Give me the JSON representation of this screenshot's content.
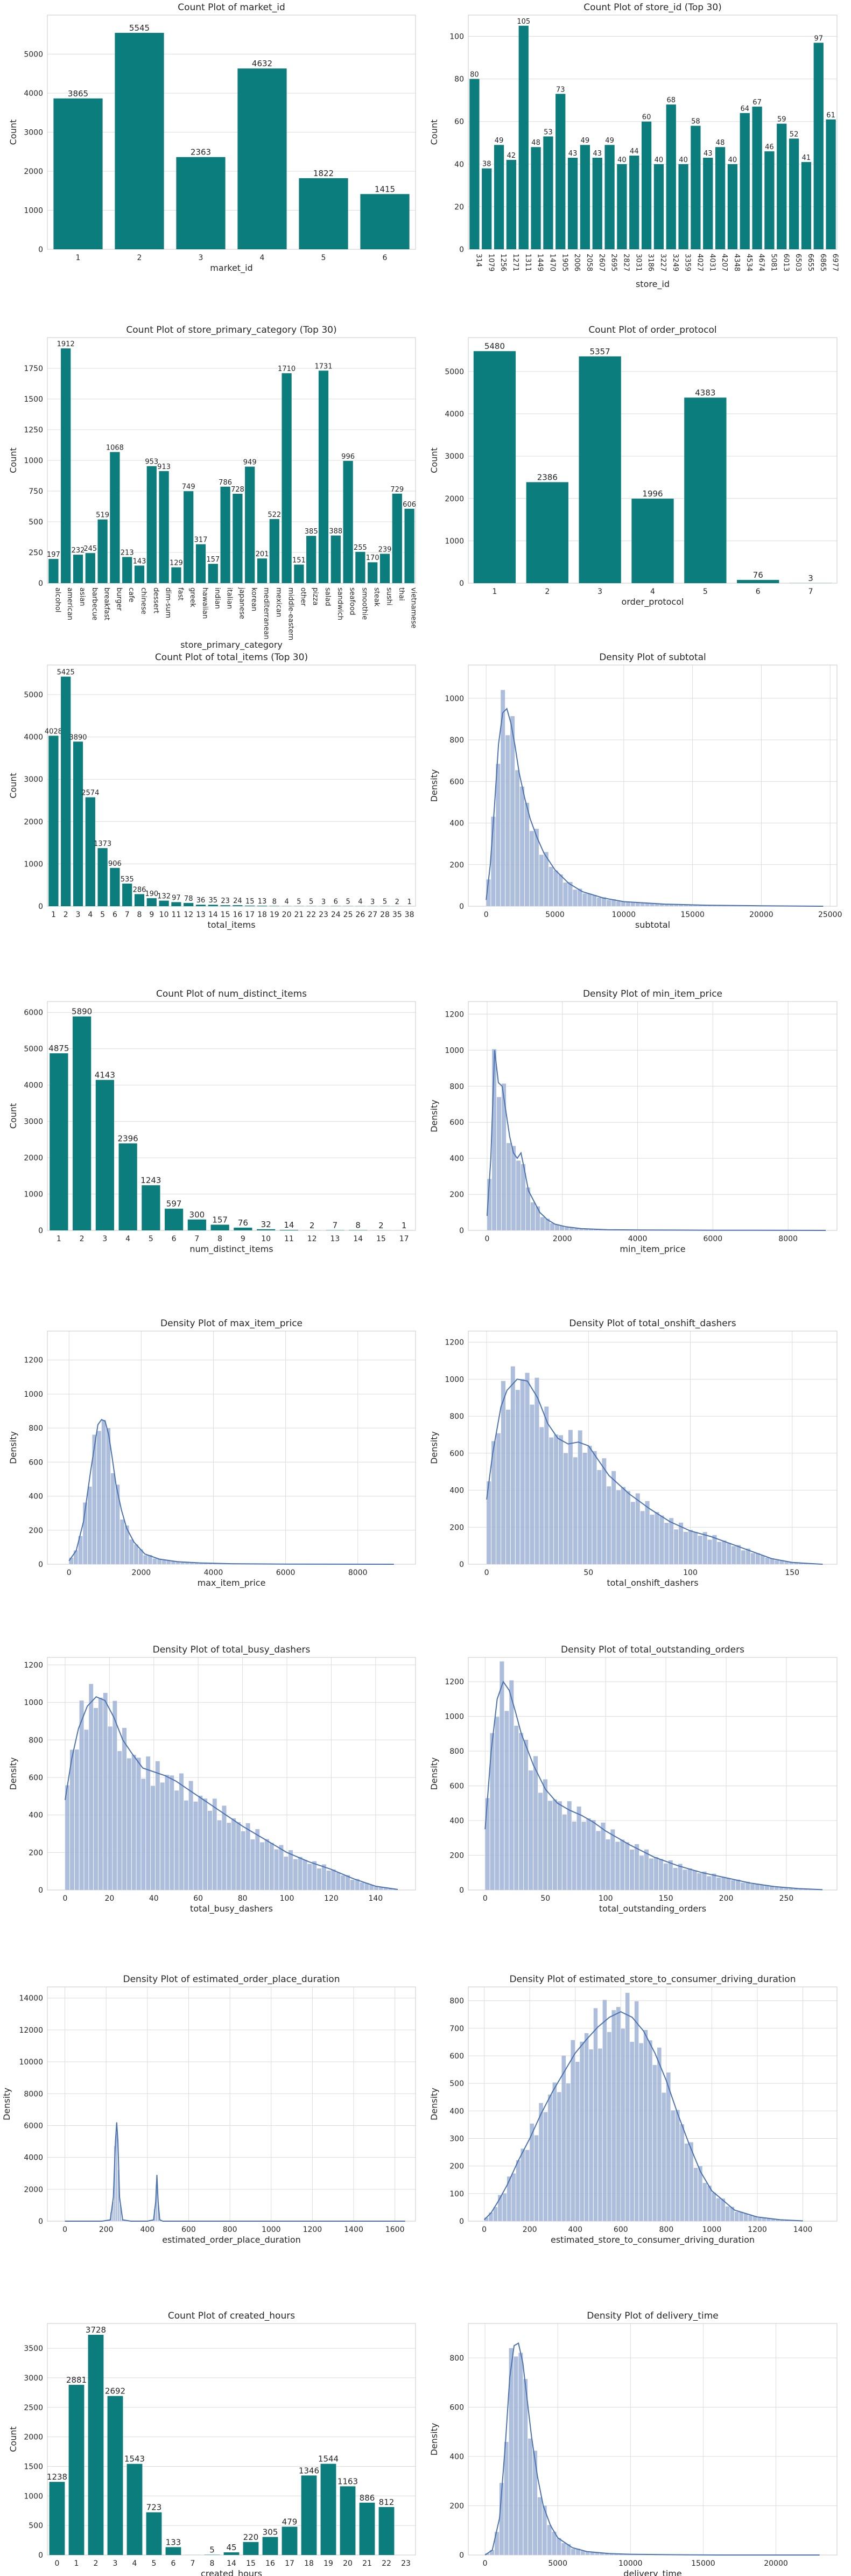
{
  "colors": {
    "bar": "#0b7d7d",
    "hist": "#9eb3d6",
    "kde": "#4c72b0",
    "grid": "#dcdcdc",
    "axis": "#c8c8c8"
  },
  "chart_data": [
    {
      "type": "bar",
      "title": "Count Plot of market_id",
      "xlabel": "market_id",
      "ylabel": "Count",
      "categories": [
        "1",
        "2",
        "3",
        "4",
        "5",
        "6"
      ],
      "values": [
        3865,
        5545,
        2363,
        4632,
        1822,
        1415
      ],
      "ylim": [
        0,
        6000
      ],
      "yticks": [
        0,
        1000,
        2000,
        3000,
        4000,
        5000
      ],
      "grid": true
    },
    {
      "type": "bar",
      "title": "Count Plot of store_id (Top 30)",
      "xlabel": "store_id",
      "ylabel": "Count",
      "categories": [
        "314",
        "1079",
        "1256",
        "1271",
        "1311",
        "1449",
        "1470",
        "1905",
        "2006",
        "2058",
        "2607",
        "2695",
        "2827",
        "3031",
        "3186",
        "3227",
        "3249",
        "3359",
        "4027",
        "4031",
        "4207",
        "4348",
        "4534",
        "4674",
        "5081",
        "6013",
        "6503",
        "6655",
        "6865",
        "6977"
      ],
      "values": [
        80,
        38,
        49,
        42,
        105,
        48,
        53,
        73,
        43,
        49,
        43,
        49,
        40,
        44,
        60,
        40,
        68,
        40,
        58,
        43,
        48,
        40,
        64,
        67,
        46,
        59,
        52,
        41,
        97,
        61
      ],
      "ylim": [
        0,
        110
      ],
      "yticks": [
        0,
        20,
        40,
        60,
        80,
        100
      ],
      "grid": true,
      "xtick_rotation": 90
    },
    {
      "type": "bar",
      "title": "Count Plot of store_primary_category (Top 30)",
      "xlabel": "store_primary_category",
      "ylabel": "Count",
      "categories": [
        "alcohol",
        "american",
        "asian",
        "barbecue",
        "breakfast",
        "burger",
        "cafe",
        "chinese",
        "dessert",
        "dim-sum",
        "fast",
        "greek",
        "hawaiian",
        "indian",
        "italian",
        "japanese",
        "korean",
        "mediterranean",
        "mexican",
        "middle-eastern",
        "other",
        "pizza",
        "salad",
        "sandwich",
        "seafood",
        "smoothie",
        "steak",
        "sushi",
        "thai",
        "vietnamese"
      ],
      "values": [
        197,
        1912,
        232,
        245,
        519,
        1068,
        213,
        143,
        953,
        913,
        129,
        749,
        317,
        157,
        786,
        728,
        949,
        201,
        522,
        1710,
        151,
        385,
        1731,
        388,
        996,
        255,
        170,
        239,
        729,
        606
      ],
      "ylim": [
        0,
        2000
      ],
      "yticks": [
        0,
        250,
        500,
        750,
        1000,
        1250,
        1500,
        1750
      ],
      "grid": true,
      "xtick_rotation": 90
    },
    {
      "type": "bar",
      "title": "Count Plot of order_protocol",
      "xlabel": "order_protocol",
      "ylabel": "Count",
      "categories": [
        "1",
        "2",
        "3",
        "4",
        "5",
        "6",
        "7"
      ],
      "values": [
        5480,
        2386,
        5357,
        1996,
        4383,
        76,
        3
      ],
      "ylim": [
        0,
        5800
      ],
      "yticks": [
        0,
        1000,
        2000,
        3000,
        4000,
        5000
      ],
      "grid": true
    },
    {
      "type": "bar",
      "title": "Count Plot of total_items (Top 30)",
      "xlabel": "total_items",
      "ylabel": "Count",
      "categories": [
        "1",
        "2",
        "3",
        "4",
        "5",
        "6",
        "7",
        "8",
        "9",
        "10",
        "11",
        "12",
        "13",
        "14",
        "15",
        "16",
        "17",
        "18",
        "19",
        "20",
        "21",
        "22",
        "23",
        "24",
        "25",
        "26",
        "27",
        "28",
        "35",
        "38"
      ],
      "values": [
        4028,
        5425,
        3890,
        2574,
        1373,
        906,
        535,
        286,
        190,
        132,
        97,
        78,
        36,
        35,
        23,
        24,
        15,
        13,
        8,
        4,
        5,
        5,
        3,
        6,
        5,
        4,
        3,
        5,
        2,
        1
      ],
      "ylim": [
        0,
        5700
      ],
      "yticks": [
        0,
        1000,
        2000,
        3000,
        4000,
        5000
      ],
      "grid": true
    },
    {
      "type": "area",
      "title": "Density Plot of subtotal",
      "xlabel": "subtotal",
      "ylabel": "Density",
      "xlim": [
        -1300,
        25500
      ],
      "ylim": [
        0,
        1160
      ],
      "xticks": [
        0,
        5000,
        10000,
        15000,
        20000,
        25000
      ],
      "yticks": [
        0,
        200,
        400,
        600,
        800,
        1000
      ],
      "kde": {
        "x": [
          0,
          300,
          600,
          900,
          1200,
          1500,
          1800,
          2100,
          2400,
          2800,
          3200,
          3700,
          4200,
          5000,
          6000,
          7000,
          8500,
          10000,
          13000,
          16000,
          20000,
          24500
        ],
        "y": [
          30,
          200,
          480,
          780,
          930,
          950,
          880,
          770,
          640,
          520,
          420,
          330,
          255,
          175,
          110,
          70,
          40,
          22,
          10,
          5,
          2,
          0
        ]
      },
      "grid": true
    },
    {
      "type": "bar",
      "title": "Count Plot of num_distinct_items",
      "xlabel": "num_distinct_items",
      "ylabel": "Count",
      "categories": [
        "1",
        "2",
        "3",
        "4",
        "5",
        "6",
        "7",
        "8",
        "9",
        "10",
        "11",
        "12",
        "13",
        "14",
        "15",
        "17"
      ],
      "values": [
        4875,
        5890,
        4143,
        2396,
        1243,
        597,
        300,
        157,
        76,
        32,
        14,
        2,
        7,
        8,
        2,
        1
      ],
      "ylim": [
        0,
        6300
      ],
      "yticks": [
        0,
        1000,
        2000,
        3000,
        4000,
        5000,
        6000
      ],
      "grid": true
    },
    {
      "type": "area",
      "title": "Density Plot of min_item_price",
      "xlabel": "min_item_price",
      "ylabel": "Density",
      "xlim": [
        -500,
        9300
      ],
      "ylim": [
        0,
        1270
      ],
      "xticks": [
        0,
        2000,
        4000,
        6000,
        8000
      ],
      "yticks": [
        0,
        200,
        400,
        600,
        800,
        1000,
        1200
      ],
      "kde": {
        "x": [
          0,
          100,
          200,
          300,
          400,
          500,
          600,
          700,
          800,
          900,
          1000,
          1100,
          1250,
          1400,
          1600,
          1800,
          2100,
          2500,
          3200,
          4000,
          6000,
          9000
        ],
        "y": [
          80,
          400,
          1000,
          820,
          800,
          660,
          520,
          430,
          400,
          430,
          330,
          220,
          160,
          100,
          60,
          35,
          20,
          10,
          4,
          2,
          1,
          0
        ]
      },
      "grid": true
    },
    {
      "type": "area",
      "title": "Density Plot of max_item_price",
      "xlabel": "max_item_price",
      "ylabel": "Density",
      "xlim": [
        -600,
        9600
      ],
      "ylim": [
        0,
        1370
      ],
      "xticks": [
        0,
        2000,
        4000,
        6000,
        8000
      ],
      "yticks": [
        0,
        200,
        400,
        600,
        800,
        1000,
        1200
      ],
      "kde": {
        "x": [
          0,
          200,
          400,
          600,
          800,
          900,
          1000,
          1100,
          1200,
          1300,
          1450,
          1600,
          1800,
          2100,
          2500,
          3000,
          3600,
          4500,
          6000,
          9000
        ],
        "y": [
          20,
          80,
          250,
          550,
          820,
          850,
          840,
          760,
          620,
          470,
          320,
          210,
          130,
          60,
          30,
          15,
          8,
          3,
          1,
          0
        ]
      },
      "grid": true
    },
    {
      "type": "area",
      "title": "Density Plot of total_onshift_dashers",
      "xlabel": "total_onshift_dashers",
      "ylabel": "Density",
      "xlim": [
        -9,
        172
      ],
      "ylim": [
        0,
        1260
      ],
      "xticks": [
        0,
        50,
        100,
        150
      ],
      "yticks": [
        0,
        200,
        400,
        600,
        800,
        1000,
        1200
      ],
      "kde": {
        "x": [
          0,
          3,
          7,
          10,
          15,
          20,
          25,
          30,
          35,
          40,
          45,
          50,
          55,
          60,
          65,
          70,
          80,
          90,
          100,
          110,
          120,
          130,
          140,
          150,
          160,
          165
        ],
        "y": [
          350,
          600,
          850,
          940,
          1000,
          990,
          900,
          760,
          680,
          650,
          660,
          640,
          560,
          480,
          430,
          380,
          300,
          230,
          180,
          150,
          110,
          70,
          30,
          10,
          3,
          0
        ]
      },
      "grid": true
    },
    {
      "type": "area",
      "title": "Density Plot of total_busy_dashers",
      "xlabel": "total_busy_dashers",
      "ylabel": "Density",
      "xlim": [
        -8,
        158
      ],
      "ylim": [
        0,
        1240
      ],
      "xticks": [
        0,
        20,
        40,
        60,
        80,
        100,
        120,
        140
      ],
      "yticks": [
        0,
        200,
        400,
        600,
        800,
        1000,
        1200
      ],
      "kde": {
        "x": [
          0,
          3,
          6,
          10,
          14,
          18,
          22,
          26,
          30,
          35,
          40,
          45,
          50,
          55,
          60,
          70,
          80,
          90,
          100,
          110,
          120,
          130,
          140,
          150
        ],
        "y": [
          480,
          700,
          860,
          980,
          1030,
          1010,
          920,
          800,
          730,
          650,
          630,
          610,
          580,
          540,
          500,
          420,
          340,
          270,
          200,
          150,
          110,
          60,
          20,
          3
        ]
      },
      "grid": true
    },
    {
      "type": "area",
      "title": "Density Plot of total_outstanding_orders",
      "xlabel": "total_outstanding_orders",
      "ylabel": "Density",
      "xlim": [
        -14,
        292
      ],
      "ylim": [
        0,
        1340
      ],
      "xticks": [
        0,
        50,
        100,
        150,
        200,
        250
      ],
      "yticks": [
        0,
        200,
        400,
        600,
        800,
        1000,
        1200
      ],
      "kde": {
        "x": [
          0,
          5,
          10,
          15,
          20,
          25,
          30,
          40,
          50,
          60,
          70,
          80,
          90,
          100,
          110,
          120,
          140,
          160,
          180,
          200,
          220,
          240,
          260,
          280
        ],
        "y": [
          350,
          800,
          1100,
          1200,
          1150,
          1030,
          900,
          720,
          580,
          500,
          460,
          430,
          390,
          340,
          300,
          260,
          190,
          140,
          100,
          70,
          40,
          20,
          8,
          2
        ]
      },
      "grid": true
    },
    {
      "type": "area",
      "title": "Density Plot of estimated_order_place_duration",
      "xlabel": "estimated_order_place_duration",
      "ylabel": "Density",
      "xlim": [
        -85,
        1700
      ],
      "ylim": [
        0,
        14700
      ],
      "xticks": [
        0,
        200,
        400,
        600,
        800,
        1000,
        1200,
        1400,
        1600
      ],
      "yticks": [
        0,
        2000,
        4000,
        6000,
        8000,
        10000,
        12000,
        14000
      ],
      "kde": {
        "x": [
          0,
          180,
          220,
          235,
          245,
          251,
          257,
          265,
          280,
          320,
          400,
          430,
          440,
          446,
          452,
          460,
          475,
          520,
          800,
          1650
        ],
        "y": [
          0,
          0,
          80,
          1500,
          5000,
          6200,
          5000,
          1500,
          80,
          0,
          0,
          80,
          1200,
          2900,
          1200,
          80,
          0,
          0,
          0,
          0
        ]
      },
      "grid": true
    },
    {
      "type": "area",
      "title": "Density Plot of estimated_store_to_consumer_driving_duration",
      "xlabel": "estimated_store_to_consumer_driving_duration",
      "ylabel": "Density",
      "xlim": [
        -70,
        1550
      ],
      "ylim": [
        0,
        850
      ],
      "xticks": [
        0,
        200,
        400,
        600,
        800,
        1000,
        1200,
        1400
      ],
      "yticks": [
        0,
        100,
        200,
        300,
        400,
        500,
        600,
        700,
        800
      ],
      "kde": {
        "x": [
          0,
          30,
          60,
          100,
          150,
          200,
          250,
          300,
          350,
          400,
          450,
          500,
          550,
          600,
          650,
          700,
          750,
          800,
          850,
          900,
          950,
          1000,
          1100,
          1200,
          1300,
          1400
        ],
        "y": [
          5,
          30,
          70,
          130,
          220,
          300,
          390,
          470,
          540,
          610,
          660,
          705,
          740,
          760,
          740,
          690,
          610,
          510,
          390,
          280,
          180,
          110,
          40,
          15,
          5,
          1
        ]
      },
      "grid": true
    },
    {
      "type": "bar",
      "title": "Count Plot of created_hours",
      "xlabel": "created_hours",
      "ylabel": "Count",
      "categories": [
        "0",
        "1",
        "2",
        "3",
        "4",
        "5",
        "6",
        "7",
        "8",
        "14",
        "15",
        "16",
        "17",
        "18",
        "19",
        "20",
        "21",
        "22",
        "23"
      ],
      "values": [
        1238,
        2881,
        3728,
        2692,
        1543,
        723,
        133,
        1,
        5,
        45,
        220,
        305,
        479,
        1346,
        1544,
        1163,
        886,
        812,
        0
      ],
      "ylim": [
        0,
        3920
      ],
      "yticks": [
        0,
        500,
        1000,
        1500,
        2000,
        2500,
        3000,
        3500
      ],
      "grid": true,
      "labels": [
        "1238",
        "2881",
        "3728",
        "2692",
        "1543",
        "723",
        "133",
        "",
        "5",
        "45",
        "220",
        "305",
        "479",
        "1346",
        "1544",
        "1163",
        "886",
        "812",
        ""
      ]
    },
    {
      "type": "area",
      "title": "Density Plot of delivery_time",
      "xlabel": "delivery_time",
      "ylabel": "Density",
      "xlim": [
        -1150,
        24200
      ],
      "ylim": [
        0,
        940
      ],
      "xticks": [
        0,
        5000,
        10000,
        15000,
        20000
      ],
      "yticks": [
        0,
        200,
        400,
        600,
        800
      ],
      "kde": {
        "x": [
          0,
          500,
          1000,
          1400,
          1700,
          2000,
          2300,
          2600,
          2900,
          3200,
          3600,
          4000,
          4500,
          5000,
          6000,
          7000,
          8500,
          10000,
          13000,
          16000,
          20000,
          23000
        ],
        "y": [
          0,
          20,
          150,
          450,
          720,
          850,
          860,
          780,
          630,
          480,
          320,
          200,
          120,
          70,
          30,
          14,
          6,
          3,
          1,
          0,
          0,
          0
        ]
      },
      "grid": true
    }
  ]
}
